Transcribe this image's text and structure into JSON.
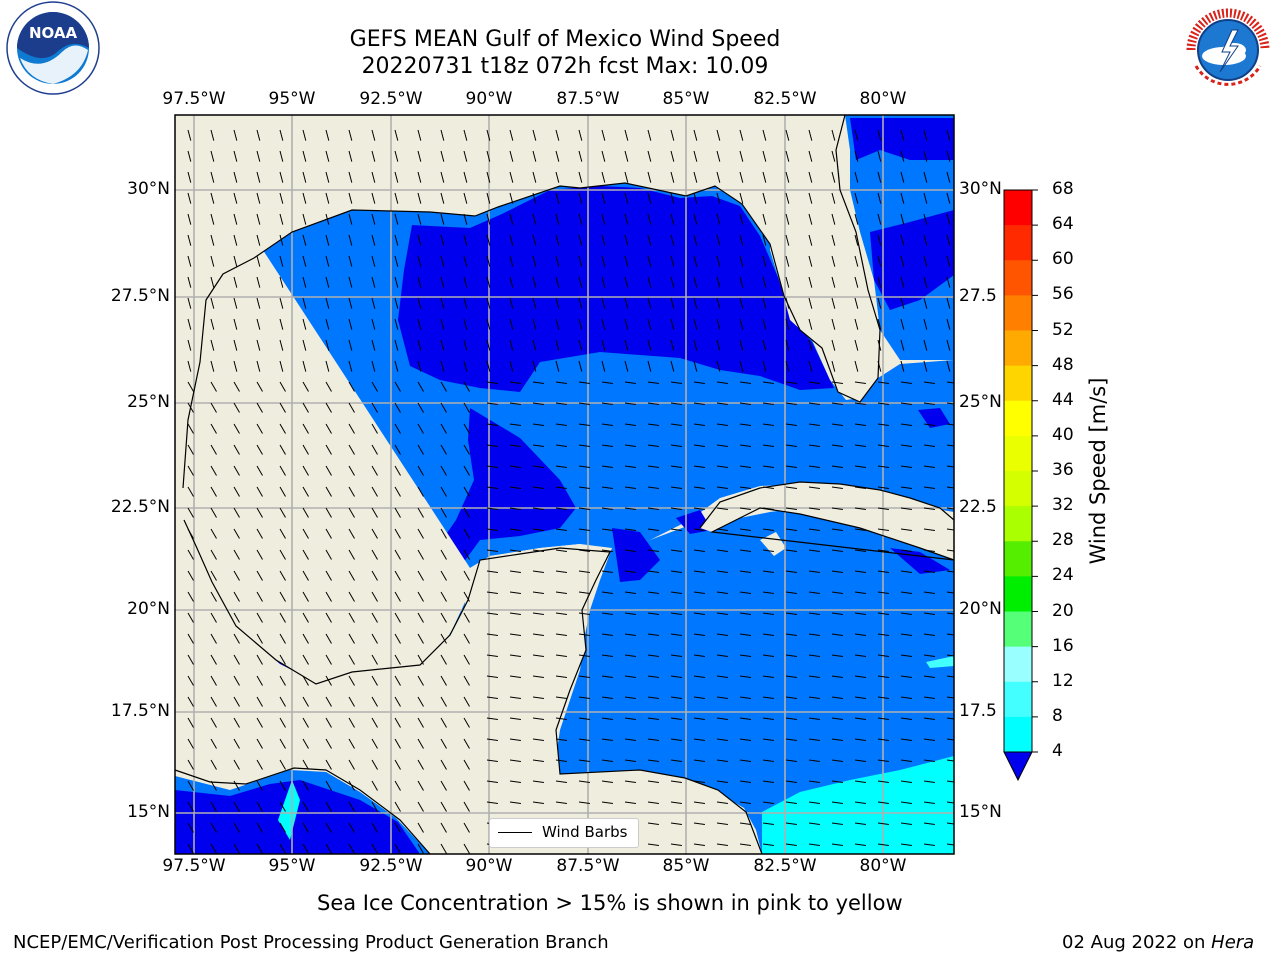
{
  "title": {
    "line1": "GEFS MEAN Gulf of Mexico Wind Speed",
    "line2": "20220731 t18z 072h fcst   Max: 10.09"
  },
  "map": {
    "region": "Gulf of Mexico",
    "lon_labels": [
      "97.5°W",
      "95°W",
      "92.5°W",
      "90°W",
      "87.5°W",
      "85°W",
      "82.5°W",
      "80°W"
    ],
    "lat_labels_left": [
      "30°N",
      "27.5°N",
      "25°N",
      "22.5°N",
      "20°N",
      "17.5°N",
      "15°N"
    ],
    "lat_labels_right": [
      "30°N",
      "27.5",
      "25°N",
      "22.5",
      "20°N",
      "17.5",
      "15°N"
    ],
    "colors": {
      "land": "#efeddd",
      "ocean_4_8": "#0077ff",
      "ocean_lt4": "#0000ee",
      "ocean_8_12": "#00ffff",
      "ocean_12_16": "#44ffff",
      "grid": "#b0b0b0"
    }
  },
  "legend": {
    "wind_barbs": "Wind Barbs"
  },
  "colorbar": {
    "label": "Wind Speed [m/s]",
    "ticks": [
      "68",
      "64",
      "60",
      "56",
      "52",
      "48",
      "44",
      "40",
      "36",
      "32",
      "28",
      "24",
      "20",
      "16",
      "12",
      "8",
      "4"
    ],
    "colors": [
      "#ff0000",
      "#ff2a00",
      "#ff5500",
      "#ff8000",
      "#ffaa00",
      "#ffd500",
      "#ffff00",
      "#eaff00",
      "#d4ff00",
      "#aaff00",
      "#55ee00",
      "#00ee00",
      "#55ff77",
      "#99ffff",
      "#44ffff",
      "#00ffff",
      "#0077ff"
    ],
    "extend_color": "#0000ee"
  },
  "subtitle": "Sea Ice Concentration > 15% is shown in pink to yellow",
  "footer": {
    "left": "NCEP/EMC/Verification Post Processing Product Generation Branch",
    "right_date": "02 Aug 2022 on ",
    "right_host": "Hera"
  },
  "logos": {
    "noaa": "NOAA",
    "nws": "NATIONAL WEATHER SERVICE"
  }
}
